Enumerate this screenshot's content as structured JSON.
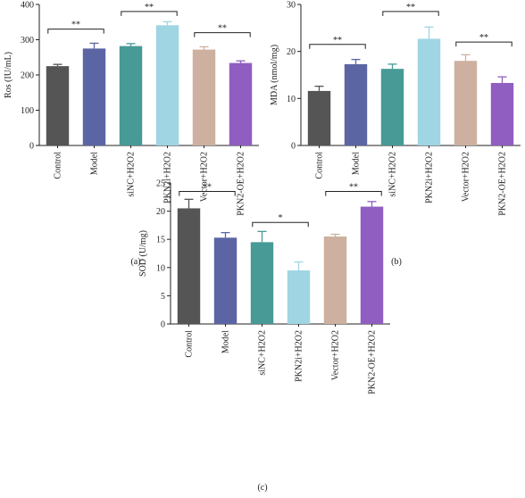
{
  "colors": [
    "#555555",
    "#5b65a4",
    "#479a95",
    "#a0d5e3",
    "#cdb09f",
    "#8f5ec0"
  ],
  "chart_data": [
    {
      "type": "bar",
      "panel_label": "(a)",
      "ylabel": "Ros (IU/mL)",
      "ylim": [
        0,
        400
      ],
      "yticks": [
        "0",
        "100",
        "200",
        "300",
        "400"
      ],
      "categories": [
        "Control",
        "Model",
        "siNC+H2O2",
        "PKN2i+H2O2",
        "Vector+H2O2",
        "PKN2-OE+H2O2"
      ],
      "values": [
        225,
        275,
        282,
        341,
        272,
        234
      ],
      "errors": [
        5,
        15,
        7,
        10,
        8,
        6
      ],
      "significance": [
        {
          "from": 0,
          "to": 1,
          "label": "**",
          "y": 330
        },
        {
          "from": 2,
          "to": 3,
          "label": "**",
          "y": 380
        },
        {
          "from": 4,
          "to": 5,
          "label": "**",
          "y": 320
        }
      ]
    },
    {
      "type": "bar",
      "panel_label": "(b)",
      "ylabel": "MDA (nmol/mg)",
      "ylim": [
        0,
        30
      ],
      "yticks": [
        "0",
        "10",
        "20",
        "30"
      ],
      "categories": [
        "Control",
        "Model",
        "siNC+H2O2",
        "PKN2i+H2O2",
        "Vector+H2O2",
        "PKN2-OE+H2O2"
      ],
      "values": [
        11.6,
        17.3,
        16.3,
        22.7,
        18.0,
        13.3
      ],
      "errors": [
        1.0,
        1.0,
        1.0,
        2.5,
        1.3,
        1.3
      ],
      "significance": [
        {
          "from": 0,
          "to": 1,
          "label": "**",
          "y": 21.5
        },
        {
          "from": 2,
          "to": 3,
          "label": "**",
          "y": 28.5
        },
        {
          "from": 4,
          "to": 5,
          "label": "**",
          "y": 22.0
        }
      ]
    },
    {
      "type": "bar",
      "panel_label": "(c)",
      "ylabel": "SOD (U/mg)",
      "ylim": [
        0,
        25
      ],
      "yticks": [
        "0",
        "5",
        "10",
        "15",
        "20",
        "25"
      ],
      "categories": [
        "Control",
        "Model",
        "siNC+H2O2",
        "PKN2i+H2O2",
        "Vector+H2O2",
        "PKN2-OE+H2O2"
      ],
      "values": [
        20.5,
        15.3,
        14.5,
        9.5,
        15.5,
        20.8
      ],
      "errors": [
        1.6,
        0.9,
        1.9,
        1.5,
        0.4,
        0.9
      ],
      "significance": [
        {
          "from": 0,
          "to": 1,
          "label": "**",
          "y": 23.5
        },
        {
          "from": 2,
          "to": 3,
          "label": "*",
          "y": 18.0
        },
        {
          "from": 4,
          "to": 5,
          "label": "**",
          "y": 23.5
        }
      ]
    }
  ]
}
